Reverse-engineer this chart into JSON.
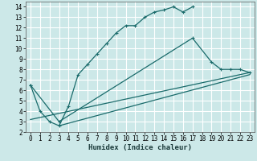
{
  "xlabel": "Humidex (Indice chaleur)",
  "bg_color": "#cce8e8",
  "grid_color": "#ffffff",
  "line_color": "#1a6b6b",
  "xlim": [
    -0.5,
    23.5
  ],
  "ylim": [
    2,
    14.5
  ],
  "xticks": [
    0,
    1,
    2,
    3,
    4,
    5,
    6,
    7,
    8,
    9,
    10,
    11,
    12,
    13,
    14,
    15,
    16,
    17,
    18,
    19,
    20,
    21,
    22,
    23
  ],
  "yticks": [
    2,
    3,
    4,
    5,
    6,
    7,
    8,
    9,
    10,
    11,
    12,
    13,
    14
  ],
  "series1_x": [
    0,
    1,
    2,
    3,
    4,
    5,
    6,
    7,
    8,
    9,
    10,
    11,
    12,
    13,
    14,
    15,
    16,
    17
  ],
  "series1_y": [
    6.5,
    4.0,
    3.0,
    2.6,
    4.5,
    7.5,
    8.5,
    9.5,
    10.5,
    11.5,
    12.2,
    12.2,
    13.0,
    13.5,
    13.7,
    14.0,
    13.5,
    14.0
  ],
  "series2_x": [
    0,
    3,
    17,
    19,
    20,
    21,
    22,
    23
  ],
  "series2_y": [
    6.5,
    3.0,
    11.0,
    8.7,
    8.0,
    8.0,
    8.0,
    7.7
  ],
  "series3_x": [
    0,
    23
  ],
  "series3_y": [
    3.2,
    7.7
  ],
  "series4_x": [
    3,
    23
  ],
  "series4_y": [
    2.6,
    7.5
  ]
}
